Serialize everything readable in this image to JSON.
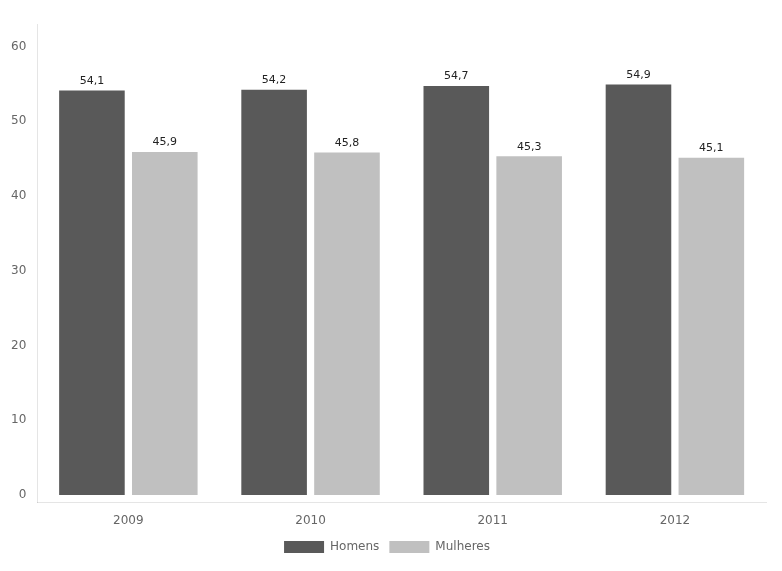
{
  "chart_data": {
    "type": "bar",
    "categories": [
      "2009",
      "2010",
      "2011",
      "2012"
    ],
    "series": [
      {
        "name": "Homens",
        "color": "#595959",
        "values": [
          54.1,
          54.2,
          54.7,
          54.9
        ],
        "value_labels": [
          "54,1",
          "54,2",
          "54,7",
          "54,9"
        ]
      },
      {
        "name": "Mulheres",
        "color": "#c0c0c0",
        "values": [
          45.9,
          45.8,
          45.3,
          45.1
        ],
        "value_labels": [
          "45,9",
          "45,8",
          "45,3",
          "45,1"
        ]
      }
    ],
    "ylim": [
      -1,
      63
    ],
    "yticks": [
      0,
      10,
      20,
      30,
      40,
      50,
      60
    ],
    "grid": false,
    "legend": "bottom",
    "data_labels": true
  }
}
